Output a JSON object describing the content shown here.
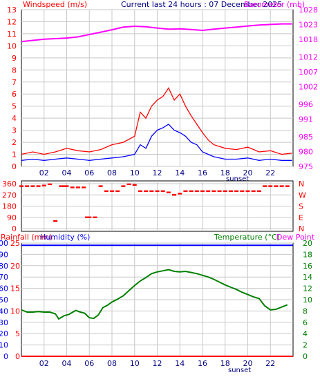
{
  "header": {
    "left": "Windspeed (m/s)",
    "center": "Current last 24 hours : 07 December 2025",
    "right": "Barometer (mb)"
  },
  "x_axis": {
    "ticks": [
      "02",
      "04",
      "06",
      "08",
      "10",
      "12",
      "14",
      "16",
      "18",
      "20",
      "22"
    ],
    "sunset_label": "sunset"
  },
  "colors": {
    "grid_bg": "#ffffff",
    "grid_line": "#c8c8c8",
    "wind_gust": "#ff0000",
    "wind_avg": "#0000ff",
    "barometer": "#ff00ff",
    "direction": "#ff0000",
    "rainfall": "#ff0000",
    "humidity": "#0000ff",
    "temperature": "#008000",
    "dewpoint": "#ff00ff"
  },
  "panel3_header": {
    "rainfall": "Rainfall (mm)",
    "humidity": "Humidity (%)",
    "temperature": "Temperature (°C)",
    "dewpoint": "Dew Point"
  },
  "chart_data": [
    {
      "type": "line",
      "x_unit": "hour of day",
      "xlim": [
        0,
        24
      ],
      "left_axis": {
        "ticks": [
          "0",
          "1",
          "2",
          "3",
          "4",
          "5",
          "6",
          "7",
          "8",
          "9",
          "10",
          "11",
          "12",
          "13"
        ],
        "ylim": [
          0,
          13
        ]
      },
      "right_axis": {
        "ticks": [
          "975",
          "980",
          "985",
          "991",
          "996",
          "1002",
          "1007",
          "1012",
          "1018",
          "1023",
          "1028"
        ],
        "ylim": [
          975,
          1028
        ]
      },
      "series": [
        {
          "name": "Windspeed (m/s)",
          "axis": "left",
          "x": [
            0,
            1,
            2,
            3,
            4,
            5,
            6,
            7,
            8,
            9,
            10,
            10.5,
            11,
            11.5,
            12,
            12.5,
            13,
            13.5,
            14,
            14.5,
            15,
            15.5,
            16,
            16.5,
            17,
            18,
            19,
            20,
            21,
            22,
            23,
            23.9
          ],
          "values": [
            0.5,
            0.6,
            0.5,
            0.6,
            0.7,
            0.6,
            0.5,
            0.6,
            0.7,
            0.8,
            1.0,
            1.8,
            1.5,
            2.5,
            3.0,
            3.2,
            3.5,
            3.0,
            2.8,
            2.5,
            2.0,
            1.8,
            1.2,
            1.0,
            0.8,
            0.6,
            0.6,
            0.7,
            0.5,
            0.6,
            0.5,
            0.5
          ]
        },
        {
          "name": "Gust",
          "axis": "left",
          "x": [
            0,
            1,
            2,
            3,
            4,
            5,
            6,
            7,
            8,
            9,
            10,
            10.5,
            11,
            11.5,
            12,
            12.5,
            13,
            13.5,
            14,
            14.5,
            15,
            15.5,
            16,
            16.5,
            17,
            18,
            19,
            20,
            21,
            22,
            23,
            23.9
          ],
          "values": [
            1.0,
            1.2,
            1.0,
            1.2,
            1.5,
            1.3,
            1.2,
            1.4,
            1.8,
            2.0,
            2.5,
            4.5,
            4.0,
            5.0,
            5.5,
            5.8,
            6.5,
            5.5,
            6.0,
            5.0,
            4.2,
            3.5,
            2.8,
            2.2,
            1.8,
            1.5,
            1.4,
            1.6,
            1.2,
            1.3,
            1.0,
            1.1
          ]
        },
        {
          "name": "Barometer (mb)",
          "axis": "right",
          "x": [
            0,
            1,
            2,
            3,
            4,
            5,
            6,
            7,
            8,
            9,
            10,
            11,
            12,
            13,
            14,
            15,
            16,
            17,
            18,
            19,
            20,
            21,
            22,
            23,
            23.9
          ],
          "values": [
            1017.2,
            1017.6,
            1018.0,
            1018.2,
            1018.4,
            1018.8,
            1019.6,
            1020.4,
            1021.2,
            1022.1,
            1022.4,
            1022.2,
            1021.8,
            1021.4,
            1021.5,
            1021.3,
            1021.0,
            1021.4,
            1021.8,
            1022.1,
            1022.5,
            1022.8,
            1023.0,
            1023.2,
            1023.2
          ]
        }
      ]
    },
    {
      "type": "scatter",
      "x_unit": "hour of day",
      "xlim": [
        0,
        24
      ],
      "left_axis": {
        "ticks": [
          "0",
          "90",
          "180",
          "270",
          "360"
        ],
        "ylim": [
          0,
          360
        ]
      },
      "right_axis": {
        "ticks": [
          "N",
          "E",
          "S",
          "W",
          "N"
        ]
      },
      "series": [
        {
          "name": "Wind direction",
          "x": [
            0,
            0.5,
            1,
            1.5,
            2,
            2.5,
            3,
            3.5,
            3.8,
            4,
            4.5,
            5,
            5.5,
            5.8,
            6,
            6.5,
            7,
            7.5,
            8,
            8.5,
            9,
            9.5,
            10,
            10.5,
            11,
            11.5,
            12,
            12.5,
            13,
            13.5,
            14,
            14.5,
            15,
            15.5,
            16,
            16.5,
            17,
            17.5,
            18,
            18.5,
            19,
            19.5,
            20,
            20.5,
            21,
            21.5,
            22,
            22.5,
            23,
            23.5
          ],
          "values": [
            340,
            340,
            340,
            340,
            345,
            355,
            60,
            340,
            340,
            340,
            330,
            330,
            330,
            90,
            90,
            90,
            340,
            300,
            300,
            300,
            340,
            355,
            350,
            300,
            300,
            300,
            300,
            300,
            290,
            270,
            280,
            300,
            300,
            300,
            300,
            300,
            300,
            300,
            300,
            300,
            300,
            300,
            300,
            300,
            300,
            340,
            340,
            340,
            340,
            340
          ]
        }
      ]
    },
    {
      "type": "line",
      "x_unit": "hour of day",
      "xlim": [
        0,
        24
      ],
      "left_axis_rainfall": {
        "ticks": [
          "0",
          "5",
          "10",
          "15",
          "20",
          "25"
        ],
        "ylim": [
          0,
          25
        ]
      },
      "left_axis_humidity": {
        "ticks": [
          "0",
          "10",
          "20",
          "30",
          "40",
          "50",
          "60",
          "70",
          "80",
          "90",
          "100"
        ],
        "ylim": [
          0,
          100
        ]
      },
      "right_axis": {
        "ticks": [
          "0",
          "2",
          "4",
          "6",
          "8",
          "10",
          "12",
          "14",
          "16",
          "18",
          "20"
        ],
        "ylim": [
          0,
          20
        ]
      },
      "series": [
        {
          "name": "Rainfall (mm)",
          "axis": "rainfall",
          "x": [
            0,
            24
          ],
          "values": [
            0,
            0
          ]
        },
        {
          "name": "Humidity (%)",
          "axis": "humidity",
          "x": [
            0,
            24
          ],
          "values": [
            98,
            98
          ]
        },
        {
          "name": "Temperature (°C)",
          "axis": "right",
          "x": [
            0,
            0.5,
            1,
            1.5,
            2,
            2.5,
            3,
            3.3,
            3.8,
            4.2,
            4.8,
            5.2,
            5.6,
            6,
            6.4,
            6.8,
            7.2,
            7.6,
            8,
            8.5,
            9,
            9.5,
            10,
            10.5,
            11,
            11.5,
            12,
            12.5,
            13,
            13.5,
            14,
            14.5,
            15,
            15.5,
            16,
            16.5,
            17,
            17.5,
            18,
            18.5,
            19,
            19.5,
            20,
            20.5,
            21,
            21.5,
            22,
            22.5,
            23,
            23.5
          ],
          "values": [
            8.2,
            7.8,
            7.8,
            7.9,
            7.8,
            7.8,
            7.5,
            6.6,
            7.2,
            7.4,
            8.1,
            7.8,
            7.6,
            6.8,
            6.7,
            7.3,
            8.6,
            9.0,
            9.6,
            10.1,
            10.7,
            11.6,
            12.5,
            13.3,
            13.9,
            14.6,
            14.9,
            15.1,
            15.3,
            15.0,
            14.9,
            15.0,
            14.8,
            14.6,
            14.3,
            14.0,
            13.6,
            13.1,
            12.6,
            12.2,
            11.8,
            11.3,
            10.9,
            10.5,
            10.2,
            8.9,
            8.2,
            8.3,
            8.7,
            9.1
          ]
        }
      ]
    }
  ]
}
